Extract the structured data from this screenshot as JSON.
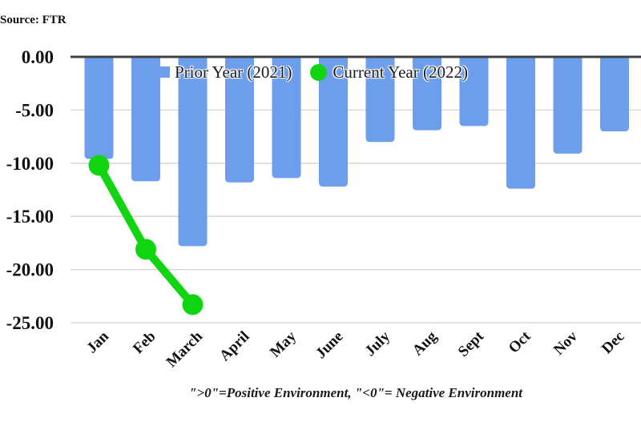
{
  "source_label": "Source: FTR",
  "footnote": "\">0\"=Positive Environment, \"<0\"= Negative Environment",
  "legend": {
    "prior": "Prior Year (2021)",
    "current": "Current Year (2022)"
  },
  "colors": {
    "bar_blue": "#6D9EEB",
    "line_green": "#12D512",
    "zero_axis": "#404040",
    "gridline": "#D2D2D2",
    "text": "#111111"
  },
  "chart_data": {
    "type": "bar",
    "categories": [
      "Jan",
      "Feb",
      "March",
      "April",
      "May",
      "June",
      "July",
      "Aug",
      "Sept",
      "Oct",
      "Nov",
      "Dec"
    ],
    "series": [
      {
        "name": "Prior Year (2021)",
        "type": "bar",
        "color": "#6D9EEB",
        "values": [
          -9.6,
          -11.7,
          -17.8,
          -11.8,
          -11.4,
          -12.2,
          -8.0,
          -6.9,
          -6.5,
          -12.4,
          -9.1,
          -7.0
        ]
      },
      {
        "name": "Current Year (2022)",
        "type": "line",
        "color": "#12D512",
        "values": [
          -10.2,
          -18.1,
          -23.3,
          null,
          null,
          null,
          null,
          null,
          null,
          null,
          null,
          null
        ]
      }
    ],
    "title": "",
    "xlabel": "",
    "ylabel": "",
    "ylim": [
      -25,
      0
    ],
    "yticks": [
      0,
      -5,
      -10,
      -15,
      -20,
      -25
    ],
    "ytick_labels": [
      "0.00",
      "-5.00",
      "-10.00",
      "-15.00",
      "-20.00",
      "-25.00"
    ],
    "grid": true,
    "legend_position": "top-inside"
  }
}
